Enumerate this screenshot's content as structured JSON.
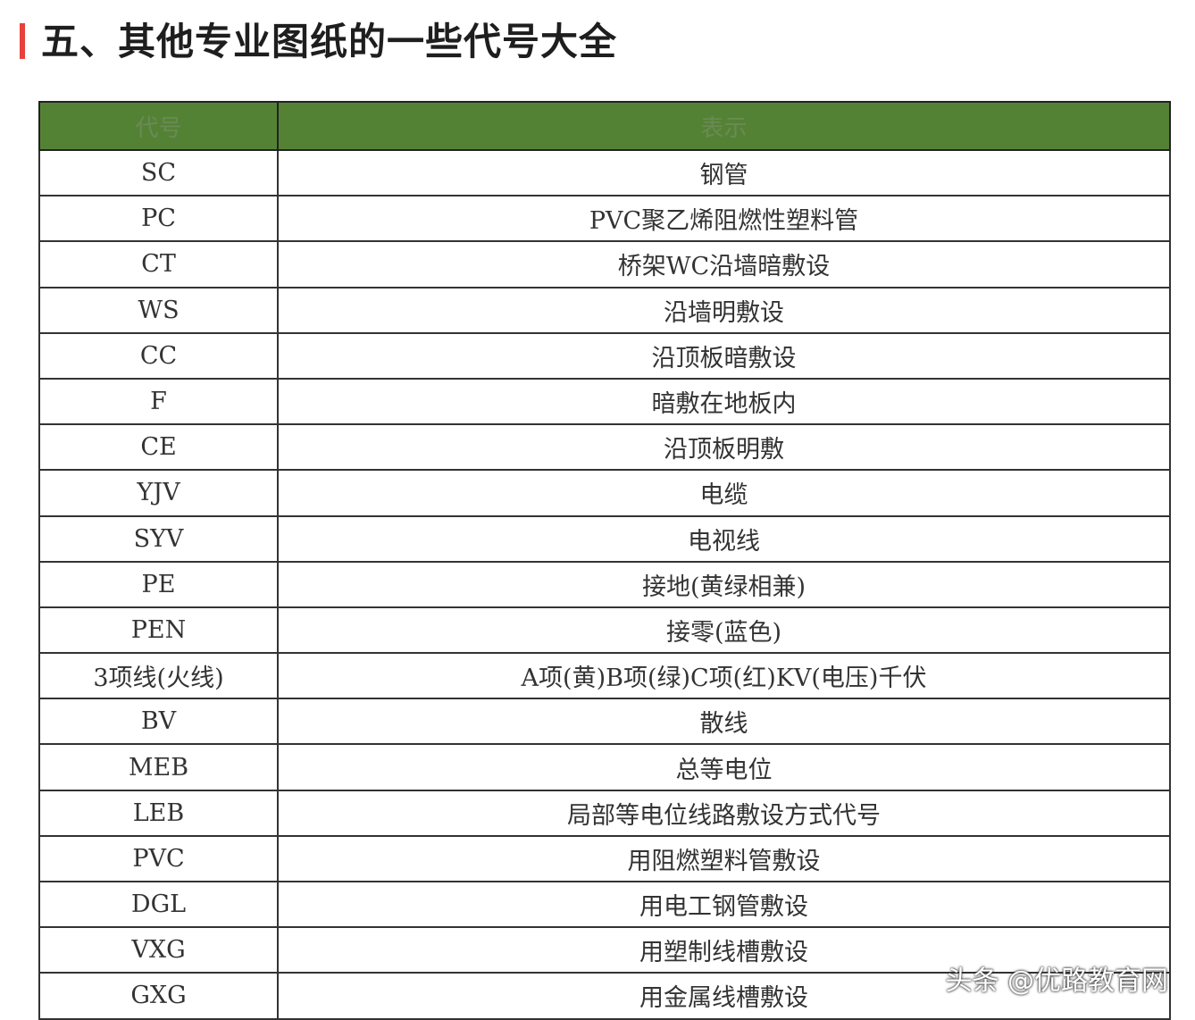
{
  "header": {
    "title": "五、其他专业图纸的一些代号大全"
  },
  "table": {
    "headers": [
      "代号",
      "表示"
    ],
    "rows": [
      [
        "SC",
        "钢管"
      ],
      [
        "PC",
        "PVC聚乙烯阻燃性塑料管"
      ],
      [
        "CT",
        "桥架WC沿墙暗敷设"
      ],
      [
        "WS",
        "沿墙明敷设"
      ],
      [
        "CC",
        "沿顶板暗敷设"
      ],
      [
        "F",
        "暗敷在地板内"
      ],
      [
        "CE",
        "沿顶板明敷"
      ],
      [
        "YJV",
        "电缆"
      ],
      [
        "SYV",
        "电视线"
      ],
      [
        "PE",
        "接地(黄绿相兼)"
      ],
      [
        "PEN",
        "接零(蓝色)"
      ],
      [
        "3项线(火线)",
        "A项(黄)B项(绿)C项(红)KV(电压)千伏"
      ],
      [
        "BV",
        "散线"
      ],
      [
        "MEB",
        "总等电位"
      ],
      [
        "LEB",
        "局部等电位线路敷设方式代号"
      ],
      [
        "PVC",
        "用阻燃塑料管敷设"
      ],
      [
        "DGL",
        "用电工钢管敷设"
      ],
      [
        "VXG",
        "用塑制线槽敷设"
      ],
      [
        "GXG",
        "用金属线槽敷设"
      ]
    ]
  },
  "watermark": "头条 @优路教育网"
}
